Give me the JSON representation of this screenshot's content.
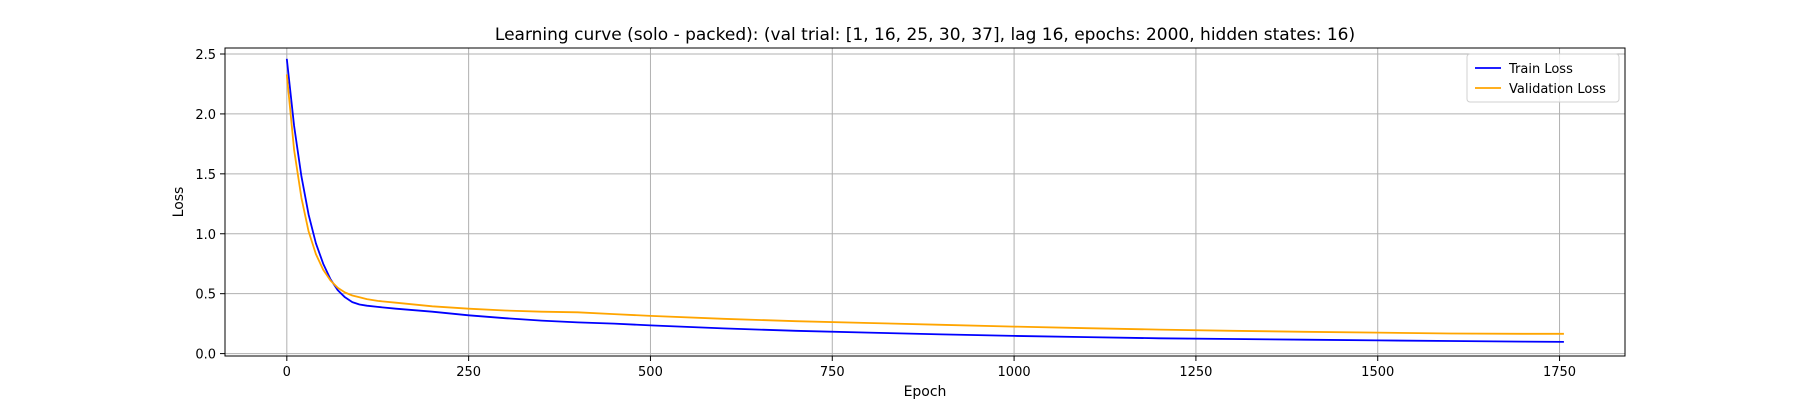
{
  "chart_data": {
    "type": "line",
    "title": "Learning curve (solo - packed): (val trial: [1, 16, 25, 30, 37], lag 16, epochs: 2000, hidden states: 16)",
    "xlabel": "Epoch",
    "ylabel": "Loss",
    "xlim": [
      -85,
      1840
    ],
    "ylim": [
      -0.02,
      2.55
    ],
    "xticks": [
      0,
      250,
      500,
      750,
      1000,
      1250,
      1500,
      1750
    ],
    "xtick_labels": [
      "0",
      "250",
      "500",
      "750",
      "1000",
      "1250",
      "1500",
      "1750"
    ],
    "yticks": [
      0.0,
      0.5,
      1.0,
      1.5,
      2.0,
      2.5
    ],
    "ytick_labels": [
      "0.0",
      "0.5",
      "1.0",
      "1.5",
      "2.0",
      "2.5"
    ],
    "grid": true,
    "legend_position": "top-right",
    "series": [
      {
        "name": "Train Loss",
        "color": "#0000ff",
        "x": [
          0,
          10,
          20,
          30,
          40,
          50,
          60,
          70,
          80,
          90,
          100,
          110,
          125,
          150,
          200,
          250,
          300,
          350,
          400,
          450,
          500,
          600,
          700,
          800,
          900,
          1000,
          1100,
          1200,
          1300,
          1400,
          1500,
          1600,
          1700,
          1756
        ],
        "y": [
          2.46,
          1.9,
          1.48,
          1.16,
          0.92,
          0.75,
          0.62,
          0.53,
          0.47,
          0.43,
          0.41,
          0.4,
          0.39,
          0.375,
          0.35,
          0.32,
          0.295,
          0.275,
          0.26,
          0.25,
          0.235,
          0.21,
          0.19,
          0.175,
          0.16,
          0.148,
          0.138,
          0.128,
          0.122,
          0.116,
          0.11,
          0.105,
          0.1,
          0.098
        ]
      },
      {
        "name": "Validation Loss",
        "color": "#ffa500",
        "x": [
          0,
          10,
          20,
          30,
          40,
          50,
          60,
          70,
          80,
          90,
          100,
          110,
          125,
          150,
          200,
          250,
          300,
          350,
          400,
          450,
          500,
          600,
          700,
          800,
          900,
          1000,
          1100,
          1200,
          1300,
          1400,
          1500,
          1600,
          1700,
          1756
        ],
        "y": [
          2.33,
          1.7,
          1.3,
          1.02,
          0.83,
          0.7,
          0.61,
          0.55,
          0.51,
          0.485,
          0.47,
          0.455,
          0.44,
          0.425,
          0.395,
          0.375,
          0.36,
          0.35,
          0.345,
          0.33,
          0.315,
          0.29,
          0.27,
          0.255,
          0.24,
          0.225,
          0.212,
          0.2,
          0.19,
          0.182,
          0.175,
          0.168,
          0.165,
          0.165
        ]
      }
    ]
  }
}
